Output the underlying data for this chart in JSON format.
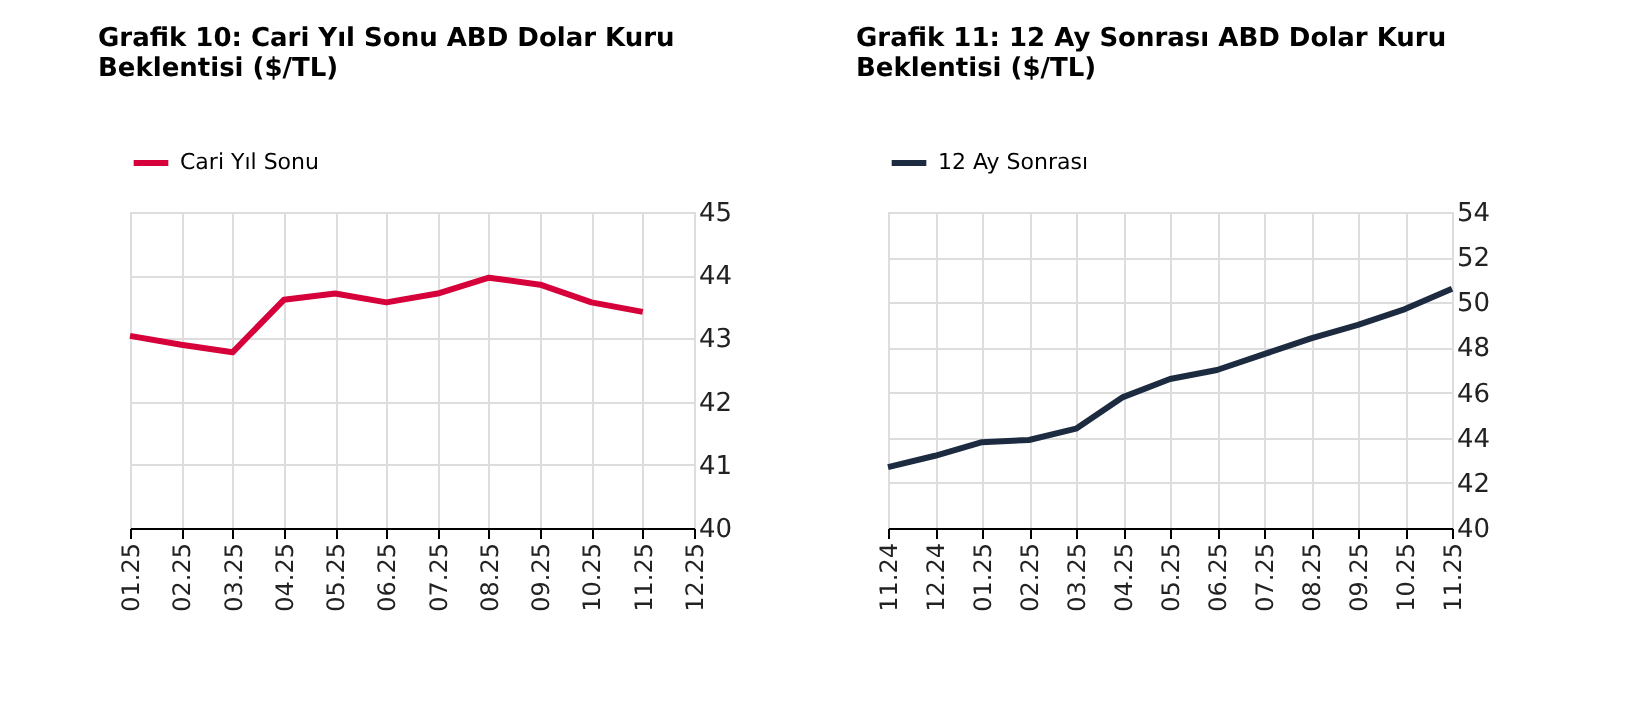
{
  "chart_data": [
    {
      "type": "line",
      "title": [
        "Grafik 10: Cari Yıl Sonu ABD Dolar Kuru",
        "Beklentisi ($/TL)"
      ],
      "categories": [
        "01.25",
        "02.25",
        "03.25",
        "04.25",
        "05.25",
        "06.25",
        "07.25",
        "08.25",
        "09.25",
        "10.25",
        "11.25",
        "12.25"
      ],
      "series": [
        {
          "name": "Cari Yıl Sonu",
          "color": "#d6003a",
          "values": [
            43.04,
            42.9,
            42.78,
            43.61,
            43.71,
            43.57,
            43.71,
            43.96,
            43.85,
            43.57,
            43.42,
            null
          ]
        }
      ],
      "ylim": [
        40,
        45
      ],
      "yticks": [
        40,
        41,
        42,
        43,
        44,
        45
      ],
      "grid": true,
      "legend": "top",
      "marker": "none",
      "line_style": "solid"
    },
    {
      "type": "line",
      "title": [
        "Grafik 11: 12 Ay Sonrası ABD Dolar Kuru",
        "Beklentisi ($/TL)"
      ],
      "categories": [
        "11.24",
        "12.24",
        "01.25",
        "02.25",
        "03.25",
        "04.25",
        "05.25",
        "06.25",
        "07.25",
        "08.25",
        "09.25",
        "10.25",
        "11.25"
      ],
      "series": [
        {
          "name": "12 Ay Sonrası",
          "color": "#1c2b40",
          "values": [
            42.7,
            43.2,
            43.8,
            43.9,
            44.4,
            45.8,
            46.6,
            47.0,
            47.7,
            48.4,
            49.0,
            49.7,
            50.6
          ]
        }
      ],
      "ylim": [
        40,
        54
      ],
      "yticks": [
        40,
        42,
        44,
        46,
        48,
        50,
        52,
        54
      ],
      "grid": true,
      "legend": "top",
      "marker": "none",
      "line_style": "solid"
    }
  ]
}
